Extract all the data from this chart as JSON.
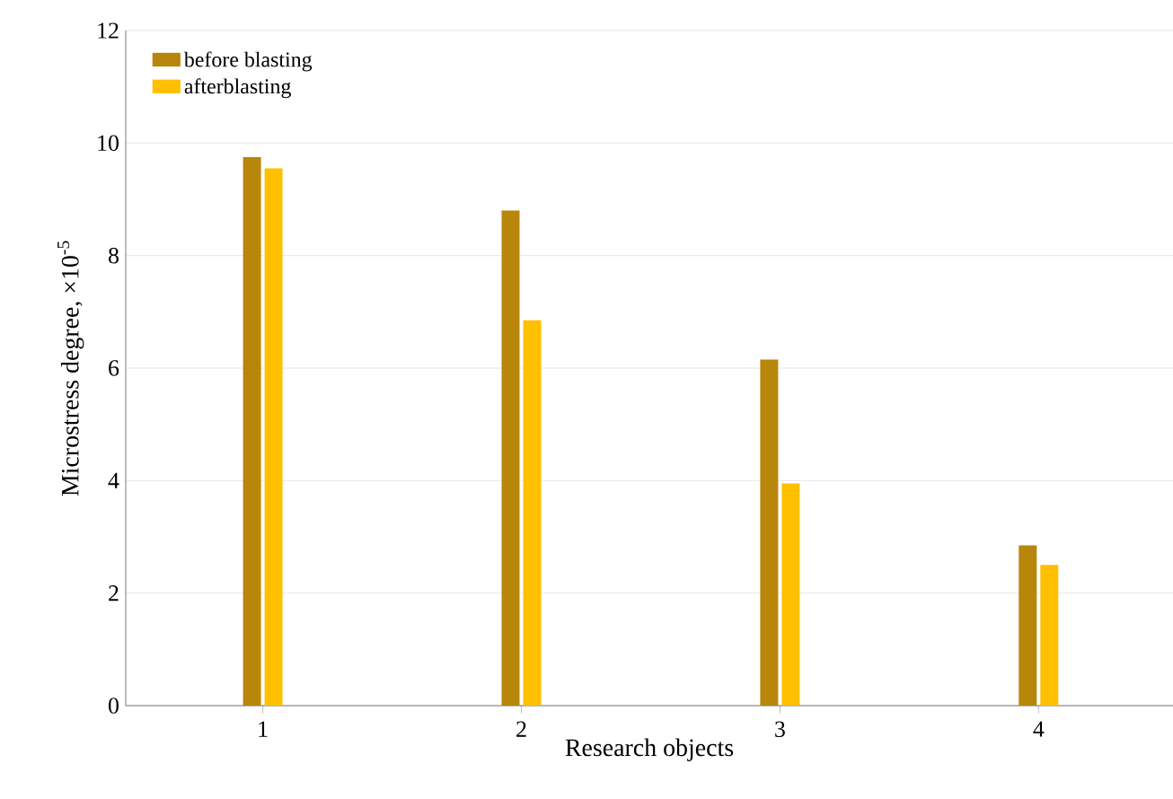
{
  "chart_data": {
    "type": "bar",
    "xlabel": "Research objects",
    "ylabel": "Microstress degree, ×10$^{-5}$",
    "categories": [
      "1",
      "2",
      "3",
      "4"
    ],
    "series": [
      {
        "name": "before blasting",
        "color": "#b8860b",
        "values": [
          9.75,
          8.8,
          6.15,
          2.85
        ]
      },
      {
        "name": "afterblasting",
        "color": "#ffc000",
        "values": [
          9.55,
          6.85,
          3.95,
          2.5
        ]
      }
    ],
    "ylim": [
      0,
      12
    ],
    "yticks": [
      0,
      2,
      4,
      6,
      8,
      10,
      12
    ],
    "grid": "y",
    "legend": "top left"
  }
}
